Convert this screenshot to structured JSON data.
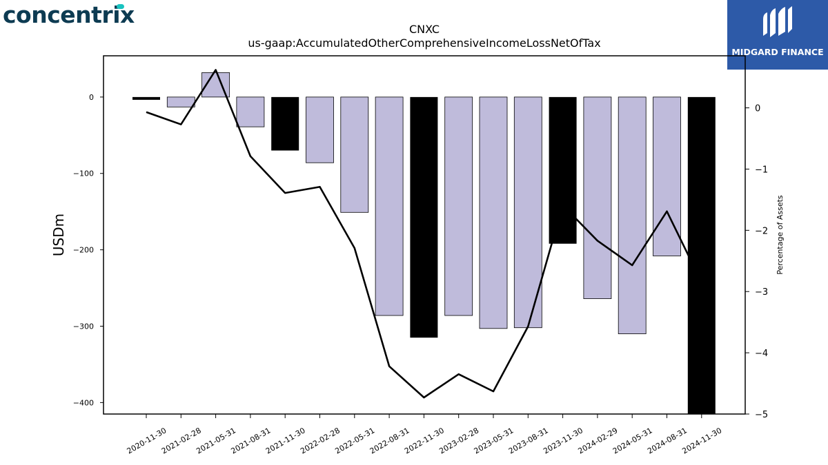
{
  "brand": {
    "left_logo_text": "concentrix",
    "right_logo_text": "MIDGARD FINANCE",
    "right_logo_bg": "#2d5aa8",
    "left_logo_color": "#0d3b52",
    "left_logo_accent": "#19c3c0"
  },
  "chart_data": {
    "type": "bar",
    "title": "CNXC",
    "subtitle": "us-gaap:AccumulatedOtherComprehensiveIncomeLossNetOfTax",
    "ylabel": "USDm",
    "y2label": "Percentage of Assets",
    "categories": [
      "2020-11-30",
      "2021-02-28",
      "2021-05-31",
      "2021-08-31",
      "2021-11-30",
      "2022-02-28",
      "2022-05-31",
      "2022-08-31",
      "2022-11-30",
      "2023-02-28",
      "2023-05-31",
      "2023-08-31",
      "2023-11-30",
      "2024-02-29",
      "2024-05-31",
      "2024-08-31",
      "2024-11-30"
    ],
    "series": [
      {
        "kind": "bar",
        "values": [
          -3,
          -13,
          32,
          -39,
          -70,
          -86,
          -151,
          -286,
          -315,
          -286,
          -303,
          -302,
          -192,
          -264,
          -310,
          -208,
          -415
        ],
        "colors": [
          "#000000",
          "#bfbbdb",
          "#bfbbdb",
          "#bfbbdb",
          "#000000",
          "#bfbbdb",
          "#bfbbdb",
          "#bfbbdb",
          "#000000",
          "#bfbbdb",
          "#bfbbdb",
          "#bfbbdb",
          "#000000",
          "#bfbbdb",
          "#bfbbdb",
          "#bfbbdb",
          "#000000"
        ]
      },
      {
        "kind": "line",
        "axis": "right",
        "values": [
          -0.07,
          -0.27,
          0.62,
          -0.79,
          -1.39,
          -1.29,
          -2.29,
          -4.22,
          -4.73,
          -4.35,
          -4.63,
          -3.57,
          -1.59,
          -2.17,
          -2.57,
          -1.69,
          -2.85
        ]
      }
    ],
    "ylim": [
      -415,
      54
    ],
    "y2lim": [
      -5,
      0.85
    ],
    "yticks": [
      0,
      -100,
      -200,
      -300,
      -400
    ],
    "y2ticks": [
      0,
      -1,
      -2,
      -3,
      -4,
      -5
    ],
    "colors": {
      "bar": "#bfbbdb",
      "bar_highlight": "#000000",
      "line": "#000000"
    },
    "grid": false,
    "legend": "none"
  }
}
